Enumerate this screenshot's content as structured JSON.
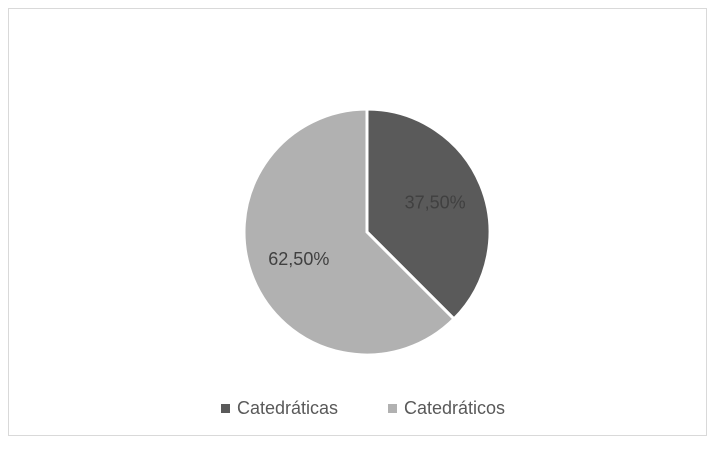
{
  "chart_data": {
    "type": "pie",
    "categories": [
      "Catedráticas",
      "Catedráticos"
    ],
    "values": [
      37.5,
      62.5
    ],
    "value_labels": [
      "37,50%",
      "62,50%"
    ],
    "colors": [
      "#5a5a5a",
      "#b1b1b1"
    ],
    "legend": "bottom"
  }
}
